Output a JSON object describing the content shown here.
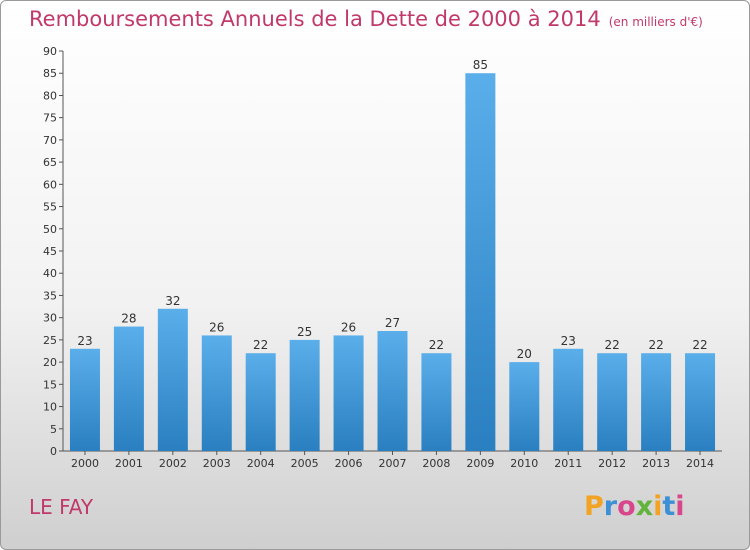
{
  "title": "Remboursements Annuels de la Dette de 2000 à 2014",
  "unit": "(en milliers d'€)",
  "place_label": "LE FAY",
  "brand": "Proxiti",
  "colors": {
    "title": "#c0396a",
    "bar_top": "#5aaeea",
    "bar_bottom": "#2a7fc0"
  },
  "chart_data": {
    "type": "bar",
    "title": "Remboursements Annuels de la Dette de 2000 à 2014",
    "subtitle": "(en milliers d'€)",
    "categories": [
      "2000",
      "2001",
      "2002",
      "2003",
      "2004",
      "2005",
      "2006",
      "2007",
      "2008",
      "2009",
      "2010",
      "2011",
      "2012",
      "2013",
      "2014"
    ],
    "values": [
      23,
      28,
      32,
      26,
      22,
      25,
      26,
      27,
      22,
      85,
      20,
      23,
      22,
      22,
      22
    ],
    "xlabel": "",
    "ylabel": "",
    "ylim": [
      0,
      90
    ],
    "ytick_step": 5,
    "grid": false,
    "data_labels": true
  }
}
